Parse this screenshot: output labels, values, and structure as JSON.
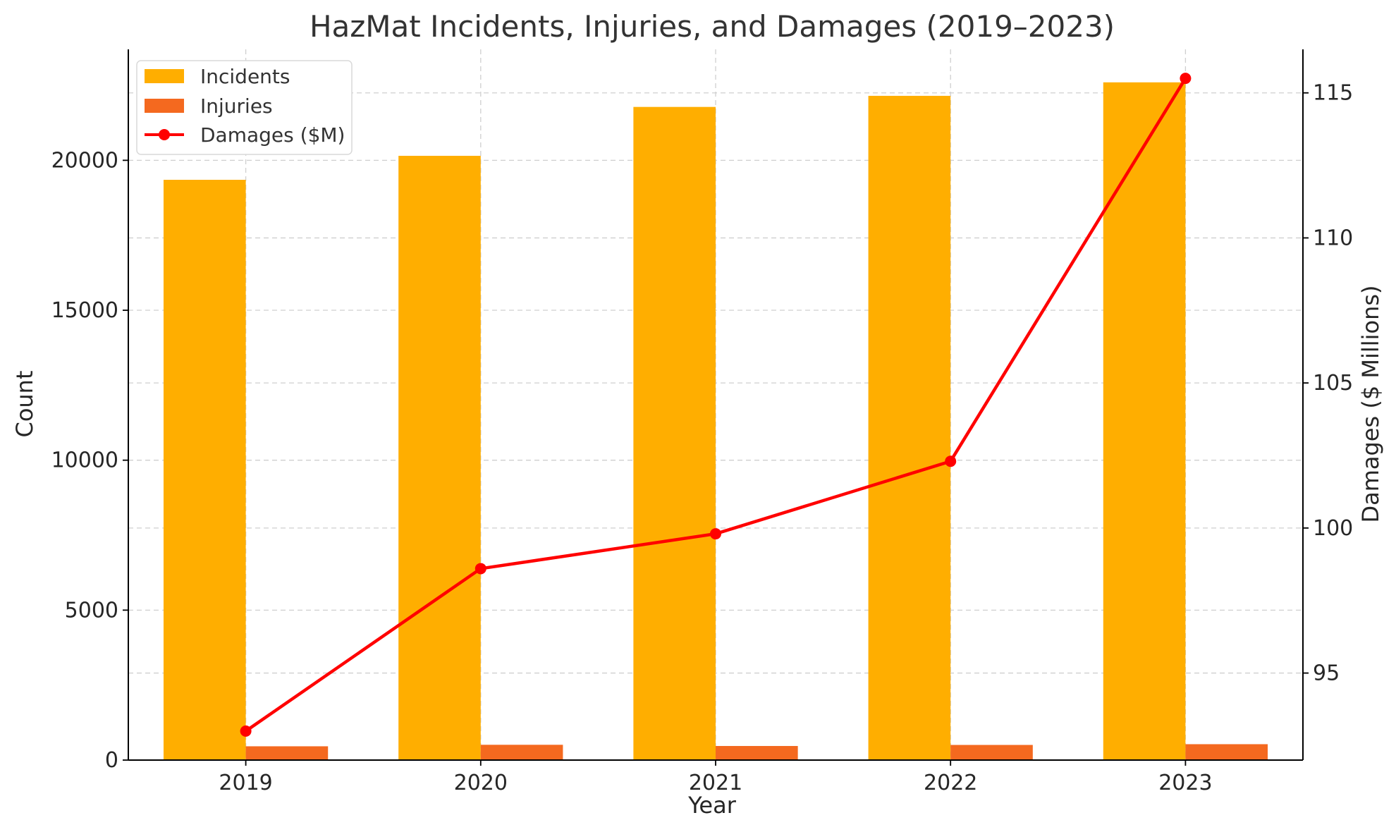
{
  "chart_data": {
    "type": "bar",
    "title": "HazMat Incidents, Injuries, and Damages (2019–2023)",
    "xlabel": "Year",
    "ylabel": "Count",
    "y2label": "Damages ($ Millions)",
    "categories": [
      "2019",
      "2020",
      "2021",
      "2022",
      "2023"
    ],
    "ylim": [
      0,
      23700
    ],
    "yticks": [
      0,
      5000,
      10000,
      15000,
      20000
    ],
    "y2lim": [
      92.0,
      116.5
    ],
    "y2ticks": [
      95,
      100,
      105,
      110,
      115
    ],
    "series": [
      {
        "name": "Incidents",
        "type": "bar",
        "axis": "left",
        "color": "#FFAE00",
        "values": [
          19350,
          20150,
          21780,
          22150,
          22600
        ]
      },
      {
        "name": "Injuries",
        "type": "bar",
        "axis": "left",
        "color": "#F4691F",
        "values": [
          460,
          510,
          470,
          505,
          530
        ]
      },
      {
        "name": "Damages ($M)",
        "type": "line",
        "axis": "right",
        "color": "#FF0000",
        "values": [
          93.0,
          98.6,
          99.8,
          102.3,
          115.5
        ]
      }
    ],
    "grid": true,
    "legend": "top-left"
  }
}
